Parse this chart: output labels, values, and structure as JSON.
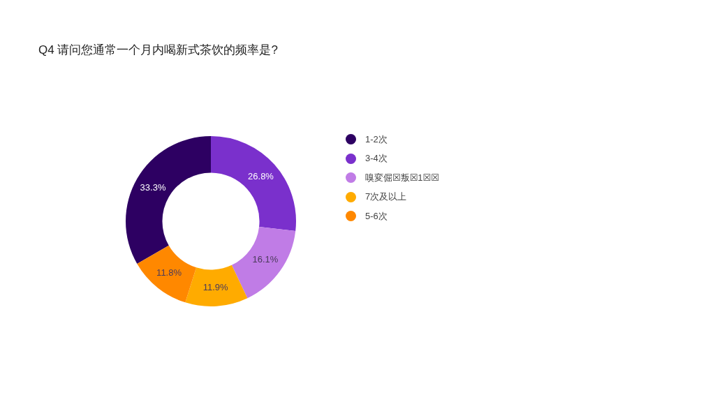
{
  "chart_data": {
    "type": "donut",
    "title": "Q4 请问您通常一个月内喝新式茶饮的频率是?",
    "categories": [
      "1-2次",
      "3-4次",
      "嗅変倔☒叛☒1☒☒",
      "7次及以上",
      "5-6次"
    ],
    "values": [
      33.3,
      26.8,
      16.1,
      11.9,
      11.8
    ],
    "colors": [
      "#2d0062",
      "#7a30cc",
      "#c07ce6",
      "#ffab00",
      "#ff8800"
    ],
    "value_labels": [
      "33.3%",
      "26.8%",
      "16.1%",
      "11.9%",
      "11.8%"
    ],
    "legend": "right"
  }
}
